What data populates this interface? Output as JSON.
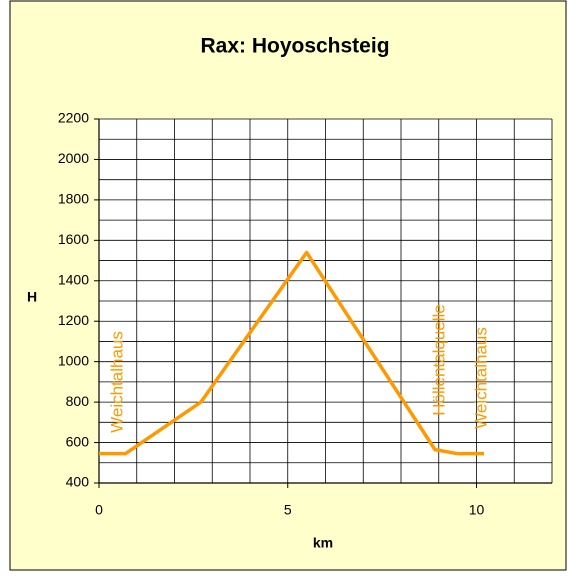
{
  "chart_data": {
    "type": "line",
    "title": "Rax: Hoyoschsteig",
    "x_label": "km",
    "y_label": "H",
    "series": [
      {
        "name": "Hoyoschsteig",
        "color": "#ff9900",
        "x": [
          0,
          0.7,
          2.7,
          5.5,
          8.9,
          9.5,
          10.2
        ],
        "values": [
          545,
          545,
          800,
          1540,
          565,
          545,
          545
        ]
      }
    ],
    "annotations": [
      "Weichtalhaus",
      "Höllentalquelle",
      "Weichtalhaus"
    ],
    "xlim": [
      0,
      12
    ],
    "xticks": [
      0,
      5,
      10
    ],
    "xgrid": [
      0,
      1,
      2,
      3,
      4,
      5,
      6,
      7,
      8,
      9,
      10,
      11,
      12
    ],
    "ylim": [
      400,
      2200
    ],
    "yticks": [
      400,
      600,
      800,
      1000,
      1200,
      1400,
      1600,
      1800,
      2000,
      2200
    ],
    "ygrid": [
      500,
      700,
      900,
      1100,
      1300,
      1500,
      1700,
      1900,
      2100
    ],
    "grid": true
  }
}
